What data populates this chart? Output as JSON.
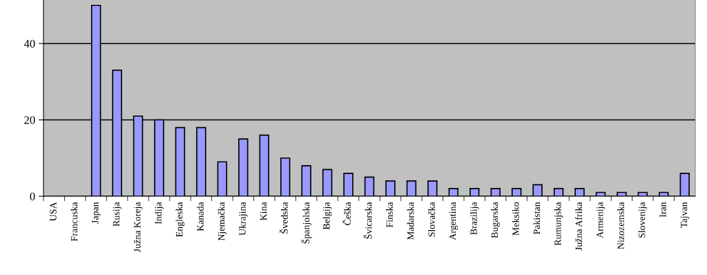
{
  "chart_data": {
    "type": "bar",
    "categories": [
      "USA",
      "Francuska",
      "Japan",
      "Rusija",
      "Južna Koreja",
      "Indija",
      "Engleska",
      "Kanada",
      "Njemačka",
      "Ukrajina",
      "Kina",
      "Švedska",
      "Španjolska",
      "Belgija",
      "Češka",
      "Švicarska",
      "Finska",
      "Madarska",
      "Slovačka",
      "Argentina",
      "Brazilija",
      "Bugarska",
      "Meksiko",
      "Pakistan",
      "Rumunjska",
      "Južna Afrika",
      "Armenija",
      "Nizozemska",
      "Slovenija",
      "Iran",
      "Tajvan"
    ],
    "values": [
      null,
      null,
      50,
      33,
      21,
      20,
      18,
      18,
      9,
      15,
      16,
      10,
      8,
      7,
      6,
      5,
      4,
      4,
      4,
      2,
      2,
      2,
      2,
      3,
      2,
      2,
      1,
      1,
      1,
      1,
      6
    ],
    "color": "#9999ff",
    "ylim": [
      0,
      51.4
    ],
    "yticks": [
      0,
      20,
      40
    ],
    "grid": "y",
    "legend": false
  }
}
